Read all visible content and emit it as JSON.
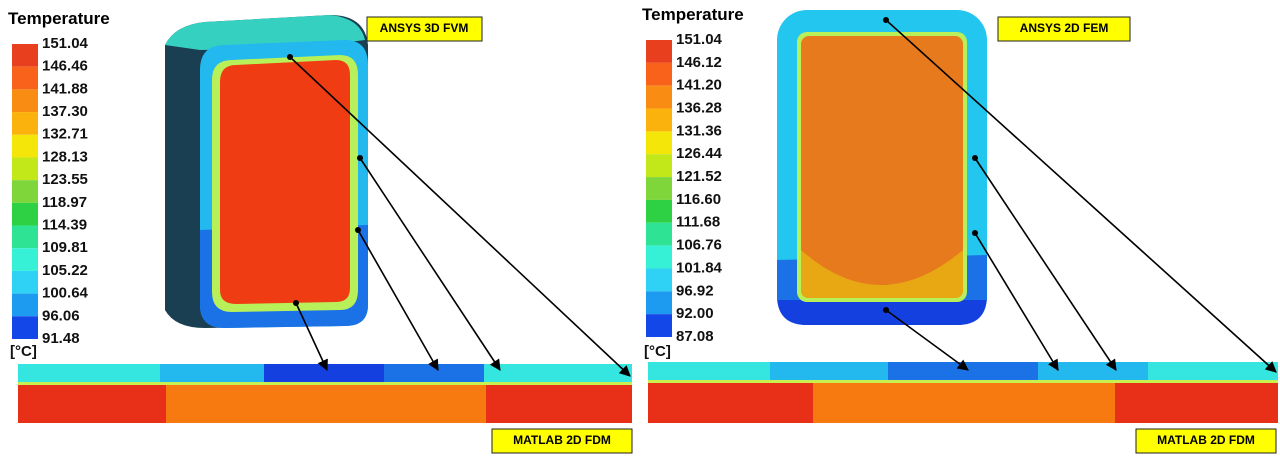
{
  "panels": [
    {
      "legend_title": "Temperature",
      "unit": "[°C]",
      "model_label": "ANSYS 3D FVM",
      "strip_label": "MATLAB 2D FDM",
      "legend_labels": [
        "151.04",
        "146.46",
        "141.88",
        "137.30",
        "132.71",
        "128.13",
        "123.55",
        "118.97",
        "114.39",
        "109.81",
        "105.22",
        "100.64",
        "96.06",
        "91.48"
      ]
    },
    {
      "legend_title": "Temperature",
      "unit": "[°C]",
      "model_label": "ANSYS 2D FEM",
      "strip_label": "MATLAB 2D FDM",
      "legend_labels": [
        "151.04",
        "146.12",
        "141.20",
        "136.28",
        "131.36",
        "126.44",
        "121.52",
        "116.60",
        "111.68",
        "106.76",
        "101.84",
        "96.92",
        "92.00",
        "87.08"
      ]
    }
  ]
}
